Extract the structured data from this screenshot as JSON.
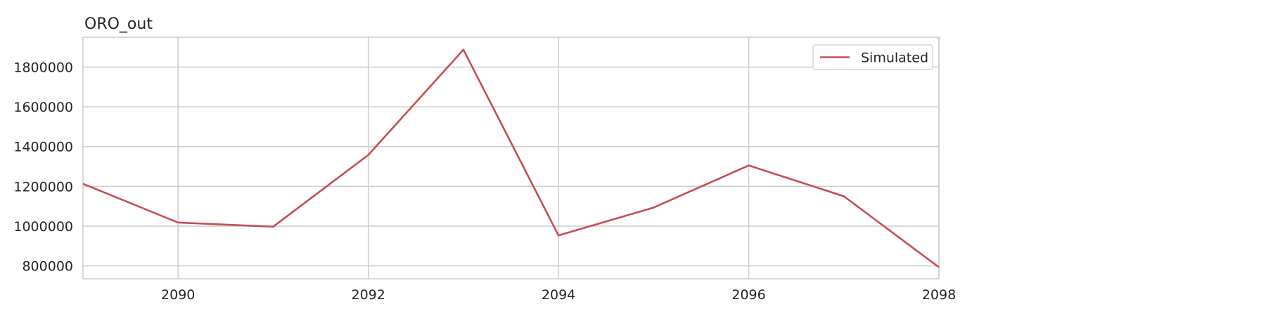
{
  "chart_data": {
    "type": "line",
    "title": "ORO_out",
    "xlabel": "",
    "ylabel": "",
    "xlim": [
      2089,
      2098
    ],
    "ylim": [
      735000,
      1950000
    ],
    "x_ticks": [
      2090,
      2092,
      2094,
      2096,
      2098
    ],
    "y_ticks": [
      800000,
      1000000,
      1200000,
      1400000,
      1600000,
      1800000
    ],
    "grid": true,
    "legend_position": "top-right",
    "series": [
      {
        "name": "Simulated",
        "color": "#c44e52",
        "x": [
          2089,
          2090,
          2091,
          2092,
          2093,
          2094,
          2095,
          2096,
          2097,
          2098
        ],
        "y": [
          1213000,
          1018000,
          997000,
          1358000,
          1887000,
          953000,
          1093000,
          1305000,
          1150000,
          793000
        ]
      }
    ]
  }
}
